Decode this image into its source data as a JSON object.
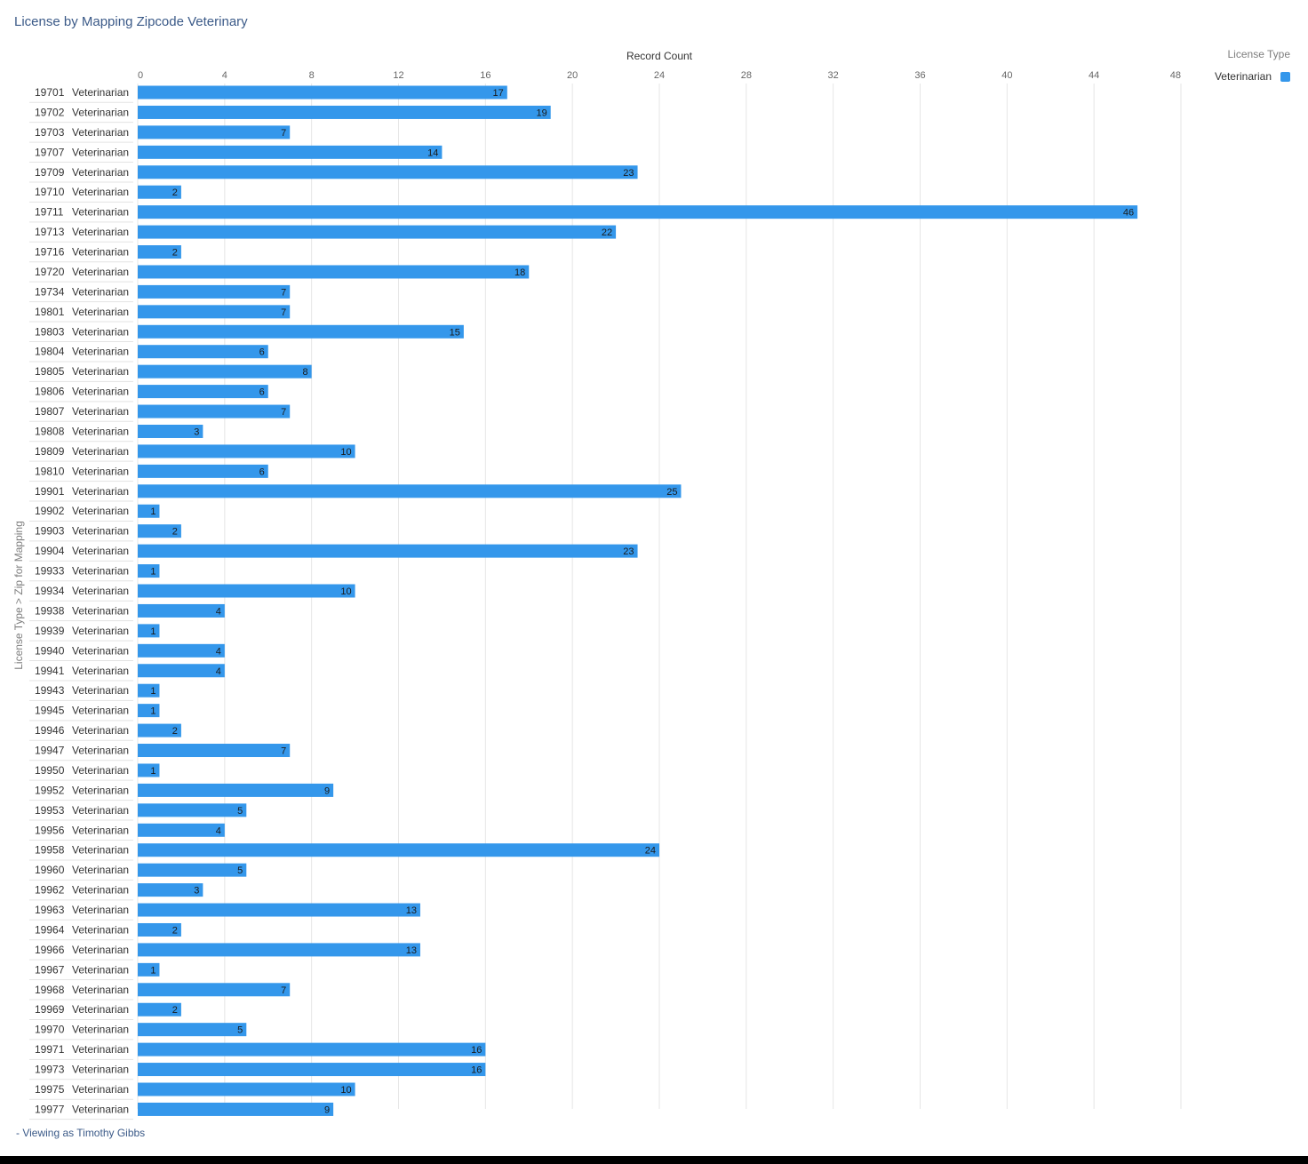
{
  "title": "License by Mapping Zipcode Veterinary",
  "footer": "- Viewing as Timothy Gibbs",
  "legend": {
    "title": "License Type",
    "items": [
      {
        "label": "Veterinarian",
        "color": "#3497eb"
      }
    ]
  },
  "colors": {
    "bar": "#3497eb",
    "grid": "#e6e6e6",
    "text": "#333333",
    "title": "#3b5a88"
  },
  "chart_data": {
    "type": "bar",
    "orientation": "horizontal",
    "title": "License by Mapping Zipcode Veterinary",
    "xlabel": "Record Count",
    "ylabel": "License Type  >  Zip for Mapping",
    "xlim": [
      0,
      48
    ],
    "xticks": [
      0,
      4,
      8,
      12,
      16,
      20,
      24,
      28,
      32,
      36,
      40,
      44,
      48
    ],
    "grid": true,
    "legend_position": "top-right",
    "series": [
      {
        "name": "Veterinarian",
        "values": [
          17,
          19,
          7,
          14,
          23,
          2,
          46,
          22,
          2,
          18,
          7,
          7,
          15,
          6,
          8,
          6,
          7,
          3,
          10,
          6,
          25,
          1,
          2,
          23,
          1,
          10,
          4,
          1,
          4,
          4,
          1,
          1,
          2,
          7,
          1,
          9,
          5,
          4,
          24,
          5,
          3,
          13,
          2,
          13,
          1,
          7,
          2,
          5,
          16,
          16,
          10,
          9
        ]
      }
    ],
    "categories": [
      "19701",
      "19702",
      "19703",
      "19707",
      "19709",
      "19710",
      "19711",
      "19713",
      "19716",
      "19720",
      "19734",
      "19801",
      "19803",
      "19804",
      "19805",
      "19806",
      "19807",
      "19808",
      "19809",
      "19810",
      "19901",
      "19902",
      "19903",
      "19904",
      "19933",
      "19934",
      "19938",
      "19939",
      "19940",
      "19941",
      "19943",
      "19945",
      "19946",
      "19947",
      "19950",
      "19952",
      "19953",
      "19956",
      "19958",
      "19960",
      "19962",
      "19963",
      "19964",
      "19966",
      "19967",
      "19968",
      "19969",
      "19970",
      "19971",
      "19973",
      "19975",
      "19977"
    ],
    "group_label": "Veterinarian"
  }
}
